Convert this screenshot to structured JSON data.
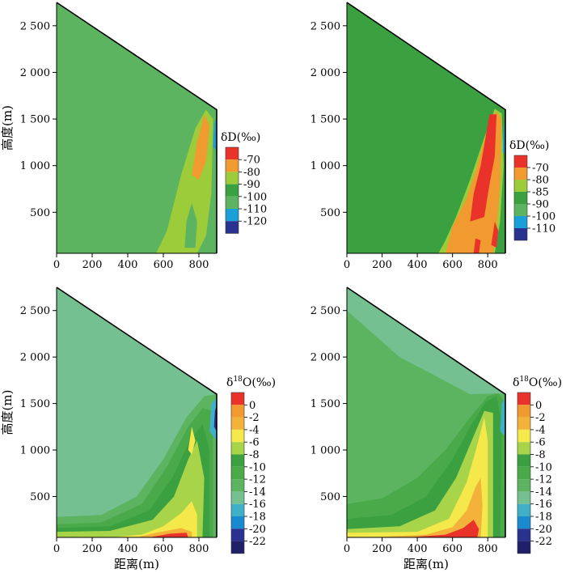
{
  "figure": {
    "ylabel": "高度(m)",
    "xlabel": "距离(m)"
  },
  "legend_unit": "‰",
  "chart_data": [
    {
      "type": "heatmap",
      "panel": "top-left",
      "x_ticks": [
        "0",
        "200",
        "400",
        "600",
        "800"
      ],
      "y_ticks": [
        "500",
        "1 000",
        "1 500",
        "2 000",
        "2 500"
      ],
      "xlim": [
        0,
        900
      ],
      "ylim": [
        60,
        2750
      ],
      "xlabel": "",
      "ylabel": "高度(m)",
      "legend": {
        "title_base": "δD",
        "title_sup": "",
        "title_unit": "(‰)",
        "labels": [
          "-70",
          "-80",
          "-90",
          "-100",
          "-110",
          "-120"
        ],
        "colors": [
          "#e8322a",
          "#f09a30",
          "#9ccc3a",
          "#3aa040",
          "#5cb460",
          "#1aa0d8",
          "#2a3290"
        ]
      },
      "background_color": "#5cb460",
      "domain": [
        [
          0,
          2750
        ],
        [
          900,
          1600
        ],
        [
          900,
          60
        ],
        [
          0,
          60
        ]
      ],
      "regions": [
        {
          "color": "#9ccc3a",
          "points": [
            [
              560,
              60
            ],
            [
              620,
              300
            ],
            [
              700,
              900
            ],
            [
              780,
              1400
            ],
            [
              840,
              1600
            ],
            [
              880,
              1500
            ],
            [
              870,
              700
            ],
            [
              840,
              250
            ],
            [
              790,
              60
            ]
          ]
        },
        {
          "color": "#f09a30",
          "points": [
            [
              760,
              900
            ],
            [
              790,
              1250
            ],
            [
              830,
              1550
            ],
            [
              860,
              1430
            ],
            [
              840,
              1050
            ],
            [
              800,
              850
            ]
          ]
        },
        {
          "color": "#5cb460",
          "points": [
            [
              720,
              120
            ],
            [
              730,
              400
            ],
            [
              760,
              600
            ],
            [
              790,
              400
            ],
            [
              780,
              120
            ]
          ]
        },
        {
          "color": "#1aa0d8",
          "points": [
            [
              880,
              1200
            ],
            [
              900,
              1160
            ],
            [
              900,
              1520
            ],
            [
              888,
              1460
            ]
          ]
        }
      ]
    },
    {
      "type": "heatmap",
      "panel": "top-right",
      "x_ticks": [
        "0",
        "200",
        "400",
        "600",
        "800"
      ],
      "y_ticks": [
        "500",
        "1 000",
        "1 500",
        "2 000",
        "2 500"
      ],
      "xlim": [
        0,
        900
      ],
      "ylim": [
        60,
        2750
      ],
      "xlabel": "",
      "ylabel": "",
      "legend": {
        "title_base": "δD",
        "title_sup": "",
        "title_unit": "(‰)",
        "labels": [
          "-70",
          "-80",
          "-85",
          "-90",
          "-100",
          "-110"
        ],
        "colors": [
          "#e8322a",
          "#f09a30",
          "#9ccc3a",
          "#3aa040",
          "#5cb460",
          "#1aa0d8",
          "#2a3290"
        ]
      },
      "background_color": "#3aa040",
      "domain": [
        [
          0,
          2750
        ],
        [
          900,
          1600
        ],
        [
          900,
          60
        ],
        [
          0,
          60
        ]
      ],
      "regions": [
        {
          "color": "#9ccc3a",
          "points": [
            [
              520,
              60
            ],
            [
              560,
              200
            ],
            [
              620,
              450
            ],
            [
              700,
              850
            ],
            [
              780,
              1300
            ],
            [
              840,
              1610
            ],
            [
              880,
              1560
            ],
            [
              890,
              1000
            ],
            [
              870,
              400
            ],
            [
              840,
              60
            ]
          ]
        },
        {
          "color": "#f09a30",
          "points": [
            [
              560,
              60
            ],
            [
              600,
              350
            ],
            [
              680,
              650
            ],
            [
              740,
              1000
            ],
            [
              800,
              1400
            ],
            [
              850,
              1580
            ],
            [
              880,
              1500
            ],
            [
              870,
              800
            ],
            [
              850,
              300
            ],
            [
              830,
              60
            ]
          ]
        },
        {
          "color": "#e8322a",
          "points": [
            [
              700,
              400
            ],
            [
              720,
              700
            ],
            [
              760,
              1000
            ],
            [
              810,
              1550
            ],
            [
              850,
              1550
            ],
            [
              840,
              1100
            ],
            [
              810,
              800
            ],
            [
              780,
              450
            ]
          ]
        },
        {
          "color": "#e8322a",
          "points": [
            [
              820,
              150
            ],
            [
              840,
              400
            ],
            [
              860,
              300
            ],
            [
              850,
              120
            ]
          ]
        },
        {
          "color": "#e8322a",
          "points": [
            [
              720,
              60
            ],
            [
              730,
              220
            ],
            [
              760,
              200
            ],
            [
              750,
              60
            ]
          ]
        },
        {
          "color": "#1aa0d8",
          "points": [
            [
              885,
              1150
            ],
            [
              900,
              1120
            ],
            [
              900,
              1520
            ],
            [
              892,
              1420
            ]
          ]
        }
      ]
    },
    {
      "type": "heatmap",
      "panel": "bottom-left",
      "x_ticks": [
        "0",
        "200",
        "400",
        "600",
        "800"
      ],
      "y_ticks": [
        "500",
        "1 000",
        "1 500",
        "2 000",
        "2 500"
      ],
      "xlim": [
        0,
        900
      ],
      "ylim": [
        60,
        2750
      ],
      "xlabel": "距离(m)",
      "ylabel": "高度(m)",
      "legend": {
        "title_base": "δ",
        "title_sup": "18",
        "title_unit": "O(‰)",
        "labels": [
          "0",
          "-2",
          "-4",
          "-6",
          "-8",
          "-10",
          "-12",
          "-14",
          "-16",
          "-18",
          "-20",
          "-22"
        ],
        "colors": [
          "#e8322a",
          "#f09a30",
          "#f3b23a",
          "#f4e84a",
          "#a8d44a",
          "#3aa040",
          "#4aaa4a",
          "#5cb460",
          "#74c090",
          "#40b0c8",
          "#1a8ad0",
          "#2a3290",
          "#20206a"
        ]
      },
      "background_color": "#74c090",
      "domain": [
        [
          0,
          2750
        ],
        [
          900,
          1600
        ],
        [
          900,
          60
        ],
        [
          0,
          60
        ]
      ],
      "regions": [
        {
          "color": "#5cb460",
          "points": [
            [
              0,
              60
            ],
            [
              0,
              280
            ],
            [
              250,
              300
            ],
            [
              450,
              500
            ],
            [
              600,
              900
            ],
            [
              730,
              1350
            ],
            [
              830,
              1580
            ],
            [
              900,
              1600
            ],
            [
              900,
              60
            ]
          ]
        },
        {
          "color": "#4aaa4a",
          "points": [
            [
              0,
              60
            ],
            [
              0,
              200
            ],
            [
              250,
              220
            ],
            [
              480,
              420
            ],
            [
              620,
              820
            ],
            [
              740,
              1250
            ],
            [
              820,
              1450
            ],
            [
              880,
              1420
            ],
            [
              880,
              60
            ]
          ]
        },
        {
          "color": "#3aa040",
          "points": [
            [
              0,
              60
            ],
            [
              0,
              160
            ],
            [
              300,
              180
            ],
            [
              520,
              350
            ],
            [
              650,
              700
            ],
            [
              750,
              1100
            ],
            [
              820,
              1280
            ],
            [
              860,
              1000
            ],
            [
              860,
              60
            ]
          ]
        },
        {
          "color": "#a8d44a",
          "points": [
            [
              0,
              60
            ],
            [
              0,
              120
            ],
            [
              300,
              130
            ],
            [
              540,
              250
            ],
            [
              660,
              500
            ],
            [
              740,
              900
            ],
            [
              790,
              1100
            ],
            [
              830,
              700
            ],
            [
              820,
              60
            ]
          ]
        },
        {
          "color": "#f4e84a",
          "points": [
            [
              300,
              60
            ],
            [
              480,
              90
            ],
            [
              600,
              180
            ],
            [
              700,
              320
            ],
            [
              760,
              450
            ],
            [
              790,
              300
            ],
            [
              790,
              60
            ]
          ]
        },
        {
          "color": "#f4e84a",
          "points": [
            [
              740,
              1000
            ],
            [
              760,
              1250
            ],
            [
              780,
              1100
            ],
            [
              760,
              950
            ]
          ]
        },
        {
          "color": "#f3b23a",
          "points": [
            [
              450,
              60
            ],
            [
              560,
              110
            ],
            [
              700,
              160
            ],
            [
              760,
              120
            ],
            [
              760,
              60
            ]
          ]
        },
        {
          "color": "#e8322a",
          "points": [
            [
              520,
              60
            ],
            [
              640,
              100
            ],
            [
              730,
              110
            ],
            [
              740,
              60
            ]
          ]
        },
        {
          "color": "#40b0c8",
          "points": [
            [
              860,
              1200
            ],
            [
              900,
              1100
            ],
            [
              900,
              1560
            ],
            [
              870,
              1500
            ]
          ]
        },
        {
          "color": "#2a3290",
          "points": [
            [
              885,
              1250
            ],
            [
              900,
              1200
            ],
            [
              900,
              1480
            ],
            [
              890,
              1420
            ]
          ]
        }
      ]
    },
    {
      "type": "heatmap",
      "panel": "bottom-right",
      "x_ticks": [
        "0",
        "200",
        "400",
        "600",
        "800"
      ],
      "y_ticks": [
        "500",
        "1 000",
        "1 500",
        "2 000",
        "2 500"
      ],
      "xlim": [
        0,
        900
      ],
      "ylim": [
        60,
        2750
      ],
      "xlabel": "距离(m)",
      "ylabel": "",
      "legend": {
        "title_base": "δ",
        "title_sup": "18",
        "title_unit": "O(‰)",
        "labels": [
          "0",
          "-2",
          "-4",
          "-6",
          "-8",
          "-10",
          "-12",
          "-14",
          "-16",
          "-18",
          "-20",
          "-22"
        ],
        "colors": [
          "#e8322a",
          "#f09a30",
          "#f3b23a",
          "#f4e84a",
          "#a8d44a",
          "#3aa040",
          "#4aaa4a",
          "#5cb460",
          "#74c090",
          "#40b0c8",
          "#1a8ad0",
          "#2a3290",
          "#20206a"
        ]
      },
      "background_color": "#5cb460",
      "domain": [
        [
          0,
          2750
        ],
        [
          900,
          1600
        ],
        [
          900,
          60
        ],
        [
          0,
          60
        ]
      ],
      "regions": [
        {
          "color": "#4aaa4a",
          "points": [
            [
              0,
              60
            ],
            [
              0,
              420
            ],
            [
              200,
              480
            ],
            [
              400,
              700
            ],
            [
              560,
              1000
            ],
            [
              700,
              1350
            ],
            [
              800,
              1580
            ],
            [
              860,
              1610
            ],
            [
              900,
              1500
            ],
            [
              900,
              60
            ]
          ]
        },
        {
          "color": "#3aa040",
          "points": [
            [
              0,
              60
            ],
            [
              0,
              260
            ],
            [
              250,
              300
            ],
            [
              450,
              500
            ],
            [
              600,
              900
            ],
            [
              700,
              1250
            ],
            [
              790,
              1520
            ],
            [
              850,
              1580
            ],
            [
              880,
              1300
            ],
            [
              870,
              60
            ]
          ]
        },
        {
          "color": "#a8d44a",
          "points": [
            [
              0,
              60
            ],
            [
              0,
              150
            ],
            [
              300,
              180
            ],
            [
              500,
              350
            ],
            [
              620,
              700
            ],
            [
              720,
              1150
            ],
            [
              780,
              1420
            ],
            [
              830,
              1400
            ],
            [
              830,
              60
            ]
          ]
        },
        {
          "color": "#f4e84a",
          "points": [
            [
              0,
              60
            ],
            [
              0,
              110
            ],
            [
              400,
              120
            ],
            [
              580,
              260
            ],
            [
              680,
              650
            ],
            [
              740,
              1050
            ],
            [
              780,
              1350
            ],
            [
              800,
              1100
            ],
            [
              800,
              60
            ]
          ]
        },
        {
          "color": "#f3b23a",
          "points": [
            [
              150,
              60
            ],
            [
              450,
              90
            ],
            [
              600,
              170
            ],
            [
              680,
              350
            ],
            [
              730,
              600
            ],
            [
              760,
              700
            ],
            [
              770,
              400
            ],
            [
              760,
              60
            ]
          ]
        },
        {
          "color": "#e8322a",
          "points": [
            [
              350,
              60
            ],
            [
              560,
              90
            ],
            [
              660,
              160
            ],
            [
              720,
              250
            ],
            [
              750,
              150
            ],
            [
              740,
              60
            ]
          ]
        },
        {
          "color": "#40b0c8",
          "points": [
            [
              870,
              1200
            ],
            [
              900,
              1150
            ],
            [
              900,
              1560
            ],
            [
              880,
              1500
            ]
          ]
        },
        {
          "color": "#74c090",
          "points": [
            [
              0,
              2750
            ],
            [
              900,
              1600
            ],
            [
              860,
              1610
            ],
            [
              700,
              1600
            ],
            [
              300,
              2000
            ],
            [
              0,
              2500
            ]
          ]
        }
      ]
    }
  ]
}
